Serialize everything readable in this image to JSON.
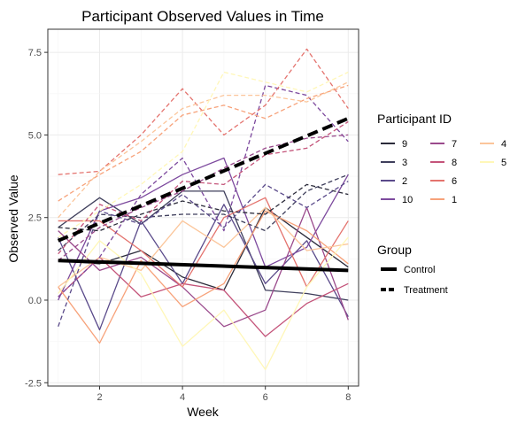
{
  "chart_data": {
    "type": "line",
    "title": "Participant Observed Values in Time",
    "xlabel": "Week",
    "ylabel": "Observed Value",
    "xlim": [
      0.75,
      8.25
    ],
    "ylim": [
      -2.6,
      8.2
    ],
    "x_ticks": [
      2,
      4,
      6,
      8
    ],
    "x_tick_labels": [
      "2",
      "4",
      "6",
      "8"
    ],
    "y_ticks": [
      -2.5,
      0.0,
      2.5,
      5.0,
      7.5
    ],
    "y_tick_labels": [
      "-2.5",
      "0.0",
      "2.5",
      "5.0",
      "7.5"
    ],
    "grid": true,
    "x": [
      1,
      2,
      3,
      4,
      5,
      6,
      7,
      8
    ],
    "legend_participant": {
      "title": "Participant ID",
      "entries": [
        {
          "label": "9",
          "color": "#2b2b3a"
        },
        {
          "label": "3",
          "color": "#3f3f5c"
        },
        {
          "label": "2",
          "color": "#5a4a8a"
        },
        {
          "label": "10",
          "color": "#7d4a9e"
        },
        {
          "label": "7",
          "color": "#9a4a8c"
        },
        {
          "label": "8",
          "color": "#c4547a"
        },
        {
          "label": "6",
          "color": "#e4736e"
        },
        {
          "label": "1",
          "color": "#f7a27a"
        },
        {
          "label": "4",
          "color": "#fbc59a"
        },
        {
          "label": "5",
          "color": "#fff7b8"
        }
      ]
    },
    "legend_group": {
      "title": "Group",
      "entries": [
        {
          "label": "Control",
          "dash": "solid"
        },
        {
          "label": "Treatment",
          "dash": "dashed"
        }
      ]
    },
    "series": [
      {
        "name": "9",
        "group": "Control",
        "color": "#2b2b3a",
        "values": [
          1.2,
          1.1,
          1.5,
          0.7,
          0.3,
          2.8,
          1.9,
          1.0
        ]
      },
      {
        "name": "3",
        "group": "Control",
        "color": "#3f3f5c",
        "values": [
          2.2,
          3.1,
          2.3,
          3.3,
          3.3,
          0.3,
          0.2,
          0.0
        ]
      },
      {
        "name": "2",
        "group": "Control",
        "color": "#5a4a8a",
        "values": [
          1.9,
          -0.9,
          2.4,
          0.5,
          2.9,
          0.5,
          1.8,
          -0.5
        ]
      },
      {
        "name": "10",
        "group": "Control",
        "color": "#7d4a9e",
        "values": [
          0.0,
          2.7,
          3.1,
          3.8,
          4.3,
          1.0,
          1.6,
          3.8
        ]
      },
      {
        "name": "7",
        "group": "Control",
        "color": "#9a4a8c",
        "values": [
          2.1,
          0.9,
          1.3,
          0.4,
          -0.8,
          -0.3,
          2.8,
          -0.6
        ]
      },
      {
        "name": "8",
        "group": "Control",
        "color": "#c4547a",
        "values": [
          0.1,
          1.3,
          0.1,
          0.5,
          0.3,
          -1.1,
          -0.1,
          0.5
        ]
      },
      {
        "name": "6",
        "group": "Control",
        "color": "#e4736e",
        "values": [
          2.4,
          2.4,
          1.5,
          0.4,
          2.5,
          3.1,
          0.4,
          2.4
        ]
      },
      {
        "name": "1",
        "group": "Control",
        "color": "#f7a27a",
        "values": [
          0.4,
          -1.3,
          1.2,
          -0.2,
          0.5,
          2.7,
          2.1,
          1.1
        ]
      },
      {
        "name": "4",
        "group": "Control",
        "color": "#fbc59a",
        "values": [
          0.4,
          1.3,
          0.9,
          2.4,
          1.6,
          2.8,
          1.5,
          1.7
        ]
      },
      {
        "name": "5",
        "group": "Control",
        "color": "#fff7b8",
        "values": [
          0.2,
          1.8,
          0.8,
          -1.4,
          -0.3,
          -2.1,
          0.4,
          1.9
        ]
      },
      {
        "name": "9",
        "group": "Treatment",
        "color": "#2b2b3a",
        "values": [
          2.2,
          2.1,
          2.6,
          3.0,
          2.7,
          2.6,
          3.5,
          3.2
        ]
      },
      {
        "name": "3",
        "group": "Treatment",
        "color": "#3f3f5c",
        "values": [
          1.5,
          2.6,
          2.5,
          2.6,
          2.6,
          2.1,
          3.3,
          3.8
        ]
      },
      {
        "name": "2",
        "group": "Treatment",
        "color": "#5a4a8a",
        "values": [
          -0.8,
          2.7,
          2.3,
          3.2,
          2.2,
          3.5,
          2.8,
          3.6
        ]
      },
      {
        "name": "10",
        "group": "Treatment",
        "color": "#7d4a9e",
        "values": [
          0.1,
          1.3,
          3.2,
          4.3,
          2.1,
          6.5,
          6.2,
          4.8
        ]
      },
      {
        "name": "7",
        "group": "Treatment",
        "color": "#9a4a8c",
        "values": [
          1.2,
          2.2,
          2.8,
          3.3,
          4.0,
          4.6,
          4.9,
          5.0
        ]
      },
      {
        "name": "8",
        "group": "Treatment",
        "color": "#c4547a",
        "values": [
          1.4,
          2.9,
          2.4,
          3.6,
          3.5,
          4.4,
          4.6,
          5.4
        ]
      },
      {
        "name": "6",
        "group": "Treatment",
        "color": "#e4736e",
        "values": [
          3.8,
          3.9,
          5.0,
          6.4,
          5.0,
          5.9,
          7.6,
          5.8
        ]
      },
      {
        "name": "1",
        "group": "Treatment",
        "color": "#f7a27a",
        "values": [
          3.0,
          3.8,
          4.5,
          5.6,
          5.9,
          5.5,
          6.1,
          6.5
        ]
      },
      {
        "name": "4",
        "group": "Treatment",
        "color": "#fbc59a",
        "values": [
          2.5,
          3.9,
          4.8,
          5.8,
          6.2,
          6.2,
          6.0,
          6.6
        ]
      },
      {
        "name": "5",
        "group": "Treatment",
        "color": "#fff7b8",
        "values": [
          1.9,
          2.7,
          3.5,
          4.5,
          6.9,
          6.6,
          6.3,
          6.9
        ]
      }
    ],
    "group_trends": [
      {
        "group": "Control",
        "x": [
          1,
          8
        ],
        "values": [
          1.2,
          0.9
        ]
      },
      {
        "group": "Treatment",
        "x": [
          1,
          8
        ],
        "values": [
          1.8,
          5.5
        ]
      }
    ]
  }
}
